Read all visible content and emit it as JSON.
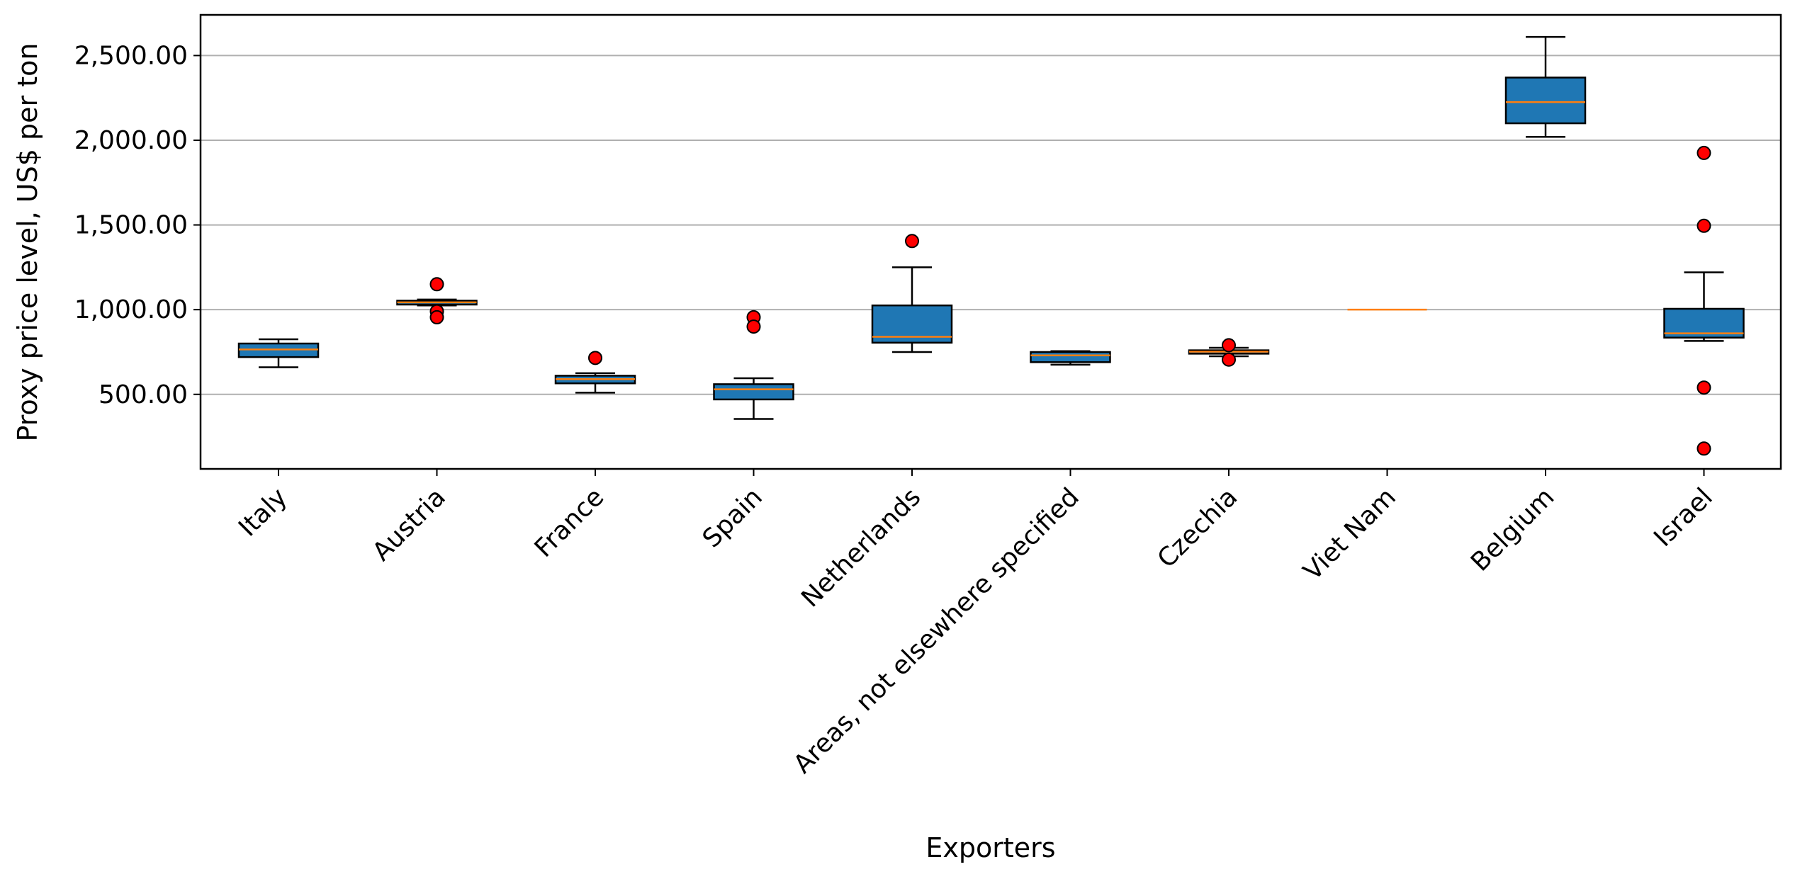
{
  "chart_data": {
    "type": "box",
    "xlabel": "Exporters",
    "ylabel": "Proxy price level, US$ per ton",
    "ylim": [
      60,
      2740
    ],
    "yticks": [
      500,
      1000,
      1500,
      2000,
      2500
    ],
    "ytick_labels": [
      "500.00",
      "1,000.00",
      "1,500.00",
      "2,000.00",
      "2,500.00"
    ],
    "grid": "y",
    "colors": {
      "box_fill": "#1f77b4",
      "median": "#ff7f0e",
      "outlier_fill": "#ff0000",
      "grid": "#b0b0b0",
      "edge": "#000000"
    },
    "categories": [
      "Italy",
      "Austria",
      "France",
      "Spain",
      "Netherlands",
      "Areas, not elsewhere specified",
      "Czechia",
      "Viet Nam",
      "Belgium",
      "Israel"
    ],
    "boxes": [
      {
        "whislo": 660,
        "q1": 720,
        "med": 765,
        "q3": 800,
        "whishi": 825,
        "fliers": []
      },
      {
        "whislo": 1025,
        "q1": 1030,
        "med": 1043,
        "q3": 1053,
        "whishi": 1060,
        "fliers": [
          1150,
          990,
          955
        ]
      },
      {
        "whislo": 510,
        "q1": 565,
        "med": 590,
        "q3": 610,
        "whishi": 625,
        "fliers": [
          715
        ]
      },
      {
        "whislo": 355,
        "q1": 470,
        "med": 530,
        "q3": 560,
        "whishi": 595,
        "fliers": [
          955,
          900
        ]
      },
      {
        "whislo": 750,
        "q1": 805,
        "med": 840,
        "q3": 1025,
        "whishi": 1250,
        "fliers": [
          1405
        ]
      },
      {
        "whislo": 675,
        "q1": 690,
        "med": 730,
        "q3": 750,
        "whishi": 755,
        "fliers": []
      },
      {
        "whislo": 725,
        "q1": 740,
        "med": 752,
        "q3": 760,
        "whishi": 775,
        "fliers": [
          790,
          705
        ]
      },
      {
        "whislo": 1000,
        "q1": 1000,
        "med": 1000,
        "q3": 1000,
        "whishi": 1000,
        "fliers": []
      },
      {
        "whislo": 2020,
        "q1": 2100,
        "med": 2225,
        "q3": 2370,
        "whishi": 2610,
        "fliers": []
      },
      {
        "whislo": 815,
        "q1": 835,
        "med": 860,
        "q3": 1005,
        "whishi": 1220,
        "fliers": [
          1925,
          1495,
          540,
          180
        ]
      }
    ]
  }
}
